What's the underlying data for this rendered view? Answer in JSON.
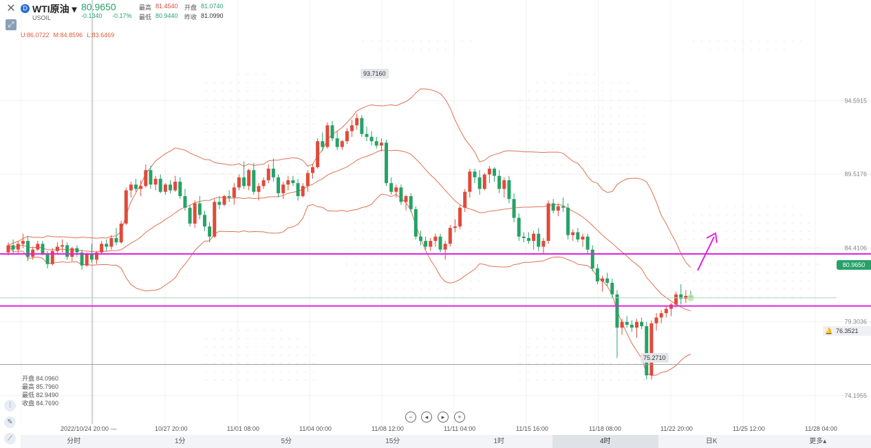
{
  "header": {
    "close_icon": "close-icon",
    "expand_icon": "expand-icon",
    "symbol_badge": "D",
    "symbol_name": "WTI原油 ▾",
    "symbol_code": "USOIL",
    "price": "80.9650",
    "change": "-0.1340",
    "change_pct": "-0.17%",
    "stats": {
      "high_label": "最高",
      "high": "81.4540",
      "open_label": "开盘",
      "open": "81.0740",
      "low_label": "最低",
      "low": "80.9440",
      "prev_label": "昨收",
      "prev": "81.0990"
    },
    "boll": {
      "upper": "U:86.0722",
      "mid": "M:84.8596",
      "lower": "L:83.6469"
    }
  },
  "ohlc_panel": [
    "开盘 84.0960",
    "最高 85.7960",
    "最低 82.9490",
    "收盘 84.7690"
  ],
  "colors": {
    "up": "#e04a3a",
    "down": "#26a269",
    "boll": "#e07050",
    "support_line": "#e020e0",
    "arrow": "#e020e0"
  },
  "nav_buttons": [
    "−",
    "◂",
    "▸",
    "+"
  ],
  "price_tags": {
    "current": "80.9650",
    "alert": "76.3521",
    "peak": "93.7160",
    "trough": "75.2710"
  },
  "timeframes": [
    "分时",
    "1分",
    "5分",
    "15分",
    "1时",
    "4时",
    "日K",
    "更多▴"
  ],
  "active_timeframe": "4时",
  "chart_data": {
    "type": "candlestick",
    "timeframe": "4时",
    "ylim": [
      73.0,
      99.0
    ],
    "y_ticks": [
      "94.5915",
      "89.5176",
      "84.4106",
      "79.3036",
      "74.1955"
    ],
    "x_ticks": [
      "2022/10/24 20:00 —",
      "10/27 20:00",
      "11/01 08:00",
      "11/04 00:00",
      "11/08 12:00",
      "11/11 04:00",
      "11/15 16:00",
      "11/18 08:00",
      "11/22 20:00",
      "11/25 12:00",
      "11/28 04:00"
    ],
    "horizontal_lines": [
      84.0,
      80.4
    ],
    "alert_line": 76.3521,
    "candles": [
      [
        84.1,
        84.8,
        83.9,
        84.6
      ],
      [
        84.6,
        85.0,
        84.0,
        84.3
      ],
      [
        84.3,
        84.9,
        84.0,
        84.7
      ],
      [
        84.7,
        85.4,
        84.4,
        84.9
      ],
      [
        84.9,
        85.2,
        83.5,
        83.8
      ],
      [
        83.8,
        84.5,
        83.6,
        84.3
      ],
      [
        84.3,
        84.9,
        84.2,
        84.7
      ],
      [
        84.7,
        84.9,
        83.9,
        84.0
      ],
      [
        84.0,
        84.2,
        83.0,
        83.3
      ],
      [
        83.3,
        84.4,
        83.2,
        84.2
      ],
      [
        84.2,
        84.8,
        84.0,
        84.5
      ],
      [
        84.5,
        85.0,
        84.1,
        84.6
      ],
      [
        84.6,
        84.8,
        83.6,
        83.8
      ],
      [
        83.8,
        84.5,
        83.5,
        84.4
      ],
      [
        84.4,
        84.6,
        83.8,
        84.1
      ],
      [
        84.1,
        84.3,
        82.9,
        83.2
      ],
      [
        83.2,
        84.1,
        83.1,
        84.0
      ],
      [
        84.0,
        84.7,
        83.4,
        83.6
      ],
      [
        83.6,
        84.2,
        83.3,
        84.1
      ],
      [
        84.1,
        84.9,
        84.0,
        84.7
      ],
      [
        84.7,
        85.0,
        84.2,
        84.5
      ],
      [
        84.5,
        85.3,
        84.3,
        85.1
      ],
      [
        85.1,
        85.8,
        84.6,
        84.8
      ],
      [
        84.8,
        86.3,
        84.7,
        86.1
      ],
      [
        86.1,
        88.6,
        86.0,
        88.4
      ],
      [
        88.4,
        89.0,
        87.9,
        88.8
      ],
      [
        88.8,
        89.2,
        88.3,
        88.5
      ],
      [
        88.5,
        89.1,
        88.0,
        88.7
      ],
      [
        88.7,
        90.2,
        88.6,
        89.8
      ],
      [
        89.8,
        90.1,
        88.5,
        88.8
      ],
      [
        88.8,
        89.4,
        88.4,
        89.2
      ],
      [
        89.2,
        89.5,
        88.2,
        88.3
      ],
      [
        88.3,
        88.9,
        88.1,
        88.8
      ],
      [
        88.8,
        89.1,
        88.2,
        88.4
      ],
      [
        88.4,
        89.4,
        88.3,
        89.0
      ],
      [
        89.0,
        89.3,
        87.8,
        88.0
      ],
      [
        88.0,
        88.5,
        87.0,
        87.2
      ],
      [
        87.2,
        87.4,
        85.9,
        86.1
      ],
      [
        86.1,
        87.7,
        85.8,
        87.5
      ],
      [
        87.5,
        88.0,
        86.4,
        86.7
      ],
      [
        86.7,
        87.0,
        85.6,
        85.9
      ],
      [
        85.9,
        86.2,
        84.8,
        85.2
      ],
      [
        85.2,
        87.8,
        85.1,
        87.6
      ],
      [
        87.6,
        88.0,
        87.1,
        87.4
      ],
      [
        87.4,
        88.1,
        87.3,
        88.0
      ],
      [
        88.0,
        88.4,
        87.6,
        87.9
      ],
      [
        87.9,
        88.9,
        87.4,
        88.6
      ],
      [
        88.6,
        89.5,
        88.4,
        89.3
      ],
      [
        89.3,
        90.4,
        88.5,
        88.7
      ],
      [
        88.7,
        89.9,
        88.4,
        89.8
      ],
      [
        89.8,
        90.3,
        88.1,
        88.3
      ],
      [
        88.3,
        88.9,
        87.7,
        88.7
      ],
      [
        88.7,
        89.3,
        88.5,
        89.1
      ],
      [
        89.1,
        90.2,
        88.9,
        89.9
      ],
      [
        89.9,
        90.6,
        89.0,
        89.3
      ],
      [
        89.3,
        89.5,
        87.9,
        88.2
      ],
      [
        88.2,
        89.0,
        87.8,
        88.8
      ],
      [
        88.8,
        89.4,
        88.4,
        89.1
      ],
      [
        89.1,
        89.4,
        88.7,
        88.9
      ],
      [
        88.9,
        89.2,
        87.7,
        88.0
      ],
      [
        88.0,
        88.9,
        87.9,
        88.7
      ],
      [
        88.7,
        89.8,
        88.3,
        89.6
      ],
      [
        89.6,
        90.2,
        89.2,
        90.0
      ],
      [
        90.0,
        92.0,
        89.9,
        91.8
      ],
      [
        91.8,
        92.4,
        91.1,
        91.4
      ],
      [
        91.4,
        93.1,
        91.3,
        92.9
      ],
      [
        92.9,
        93.2,
        91.8,
        92.0
      ],
      [
        92.0,
        92.5,
        91.2,
        91.4
      ],
      [
        91.4,
        91.9,
        91.2,
        91.8
      ],
      [
        91.8,
        92.7,
        91.6,
        92.5
      ],
      [
        92.5,
        93.3,
        92.1,
        92.9
      ],
      [
        92.9,
        93.7,
        92.6,
        93.4
      ],
      [
        93.4,
        93.6,
        92.1,
        92.3
      ],
      [
        92.3,
        92.8,
        91.8,
        92.1
      ],
      [
        92.1,
        92.5,
        91.5,
        91.8
      ],
      [
        91.8,
        92.1,
        91.3,
        91.5
      ],
      [
        91.5,
        92.0,
        91.1,
        91.7
      ],
      [
        91.7,
        91.9,
        88.7,
        88.9
      ],
      [
        88.9,
        89.3,
        88.1,
        88.3
      ],
      [
        88.3,
        88.8,
        87.9,
        88.6
      ],
      [
        88.6,
        88.8,
        87.4,
        87.6
      ],
      [
        87.6,
        88.1,
        87.0,
        88.0
      ],
      [
        88.0,
        88.2,
        86.9,
        87.1
      ],
      [
        87.1,
        87.3,
        85.0,
        85.2
      ],
      [
        85.2,
        85.6,
        84.6,
        84.9
      ],
      [
        84.9,
        85.2,
        84.3,
        84.5
      ],
      [
        84.5,
        85.1,
        84.2,
        84.9
      ],
      [
        84.9,
        85.4,
        84.5,
        85.2
      ],
      [
        85.2,
        85.4,
        84.1,
        84.3
      ],
      [
        84.3,
        84.9,
        83.6,
        84.7
      ],
      [
        84.7,
        86.0,
        84.5,
        85.8
      ],
      [
        85.8,
        86.4,
        85.5,
        85.9
      ],
      [
        85.9,
        87.4,
        85.7,
        87.2
      ],
      [
        87.2,
        88.5,
        86.9,
        88.3
      ],
      [
        88.3,
        89.9,
        87.9,
        89.7
      ],
      [
        89.7,
        89.9,
        88.9,
        89.3
      ],
      [
        89.3,
        89.8,
        88.1,
        88.5
      ],
      [
        88.5,
        89.6,
        88.4,
        89.5
      ],
      [
        89.5,
        90.1,
        88.9,
        89.9
      ],
      [
        89.9,
        90.0,
        89.0,
        89.4
      ],
      [
        89.4,
        89.8,
        88.2,
        88.5
      ],
      [
        88.5,
        89.3,
        87.9,
        89.1
      ],
      [
        89.1,
        89.4,
        87.5,
        87.8
      ],
      [
        87.8,
        88.2,
        86.2,
        86.5
      ],
      [
        86.5,
        86.8,
        84.9,
        85.2
      ],
      [
        85.2,
        85.5,
        84.8,
        85.1
      ],
      [
        85.1,
        85.5,
        84.7,
        84.9
      ],
      [
        84.9,
        85.6,
        84.3,
        85.4
      ],
      [
        85.4,
        85.8,
        84.2,
        84.5
      ],
      [
        84.5,
        85.1,
        84.0,
        84.9
      ],
      [
        84.9,
        87.7,
        84.7,
        87.5
      ],
      [
        87.5,
        87.8,
        86.8,
        87.0
      ],
      [
        87.0,
        87.5,
        86.6,
        87.3
      ],
      [
        87.3,
        87.9,
        86.9,
        87.2
      ],
      [
        87.2,
        87.5,
        85.0,
        85.3
      ],
      [
        85.3,
        85.7,
        84.9,
        85.5
      ],
      [
        85.5,
        85.8,
        84.8,
        85.0
      ],
      [
        85.0,
        85.4,
        84.5,
        85.2
      ],
      [
        85.2,
        85.4,
        84.0,
        84.3
      ],
      [
        84.3,
        84.6,
        82.8,
        83.0
      ],
      [
        83.0,
        83.3,
        81.9,
        82.1
      ],
      [
        82.1,
        82.5,
        81.4,
        82.3
      ],
      [
        82.3,
        82.7,
        81.8,
        82.0
      ],
      [
        82.0,
        82.3,
        80.9,
        81.2
      ],
      [
        81.2,
        81.5,
        76.8,
        78.9
      ],
      [
        78.9,
        79.5,
        78.4,
        79.3
      ],
      [
        79.3,
        79.7,
        78.9,
        79.1
      ],
      [
        79.1,
        79.4,
        78.6,
        78.9
      ],
      [
        78.9,
        79.5,
        78.2,
        79.3
      ],
      [
        79.3,
        79.6,
        78.8,
        79.0
      ],
      [
        79.0,
        79.3,
        75.3,
        75.6
      ],
      [
        75.6,
        79.4,
        75.3,
        79.2
      ],
      [
        79.2,
        79.9,
        78.7,
        79.6
      ],
      [
        79.6,
        80.1,
        79.2,
        79.9
      ],
      [
        79.9,
        80.4,
        79.6,
        80.2
      ],
      [
        80.2,
        80.6,
        79.7,
        80.5
      ],
      [
        80.5,
        81.4,
        80.3,
        81.2
      ],
      [
        81.2,
        81.9,
        80.5,
        80.9
      ],
      [
        80.9,
        81.5,
        80.6,
        81.1
      ],
      [
        81.1,
        81.45,
        80.94,
        80.965
      ]
    ]
  }
}
